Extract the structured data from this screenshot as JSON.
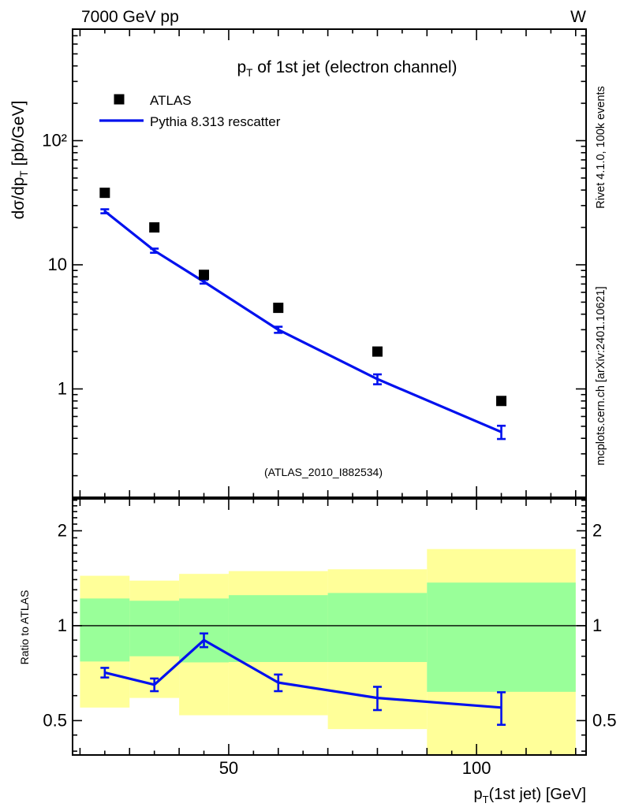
{
  "header": {
    "left": "7000 GeV pp",
    "right": "W"
  },
  "title": {
    "prefix": "p",
    "sub": "T",
    "rest": " of 1st jet (electron channel)"
  },
  "legend": [
    {
      "label": "ATLAS",
      "marker": "filled-square",
      "color": "#000000"
    },
    {
      "label": "Pythia 8.313 rescatter",
      "marker": "line",
      "color": "#0011ee"
    }
  ],
  "watermark": "(ATLAS_2010_I882534)",
  "side_notes": {
    "top": "Rivet 4.1.0,  100k events",
    "bottom": "mcplots.cern.ch [arXiv:2401.10621]"
  },
  "axes": {
    "x": {
      "label_prefix": "p",
      "label_sub": "T",
      "label_rest": "(1st jet) [GeV]",
      "scale": "linear",
      "range": [
        18.5,
        122.1
      ],
      "major_ticks": [
        50,
        100
      ],
      "tick_labels": [
        "50",
        "100"
      ],
      "medium_step": 10,
      "minor_step": 5
    },
    "y_main": {
      "label_prefix": "dσ/dp",
      "label_sub": "T",
      "label_rest": " [pb/GeV]",
      "scale": "log",
      "range": [
        0.134,
        791
      ],
      "major_ticks": [
        1,
        10,
        100
      ],
      "tick_labels": [
        "1",
        "10",
        "10²"
      ]
    },
    "y_ratio": {
      "label": "Ratio to ATLAS",
      "scale": "log",
      "range": [
        0.389,
        2.525
      ],
      "major_ticks": [
        0.5,
        1,
        2
      ],
      "tick_labels": [
        "0.5",
        "1",
        "2"
      ],
      "minor_ticks": [
        0.4,
        0.45,
        0.6,
        0.7,
        0.8,
        0.9,
        1.1,
        1.2,
        1.3,
        1.4,
        1.5,
        1.6,
        1.7,
        1.8,
        1.9,
        2.1,
        2.2,
        2.3,
        2.4,
        2.5
      ]
    }
  },
  "chart_data": [
    {
      "id": "main",
      "type": "line",
      "xscale": "linear",
      "yscale": "log",
      "xlim": [
        18.5,
        122.1
      ],
      "ylim": [
        0.134,
        791
      ],
      "series": [
        {
          "name": "ATLAS",
          "type": "scatter",
          "marker": "filled-square",
          "color": "#000000",
          "x": [
            25,
            35,
            45,
            60,
            80,
            105
          ],
          "y": [
            38,
            20,
            8.3,
            4.5,
            2.0,
            0.8
          ]
        },
        {
          "name": "Pythia 8.313 rescatter",
          "type": "line-errorbar",
          "color": "#0011ee",
          "x": [
            25,
            35,
            45,
            60,
            80,
            105
          ],
          "y": [
            27,
            13,
            7.3,
            3.0,
            1.2,
            0.45
          ],
          "yerr": [
            1.0,
            0.5,
            0.25,
            0.17,
            0.11,
            0.055
          ]
        }
      ]
    },
    {
      "id": "ratio",
      "type": "line",
      "xscale": "linear",
      "yscale": "log",
      "xlim": [
        18.5,
        122.1
      ],
      "ylim": [
        0.389,
        2.525
      ],
      "reference_line": 1,
      "series": [
        {
          "name": "Pythia/ATLAS",
          "type": "line-errorbar",
          "color": "#0011ee",
          "x": [
            25,
            35,
            45,
            60,
            80,
            105
          ],
          "y": [
            0.71,
            0.65,
            0.9,
            0.66,
            0.59,
            0.55
          ],
          "yerr": [
            0.025,
            0.03,
            0.045,
            0.04,
            0.05,
            0.065
          ]
        }
      ],
      "bands": {
        "bin_edges": [
          20,
          30,
          40,
          50,
          70,
          90,
          120
        ],
        "outer": {
          "color": "#ffff99",
          "ranges": [
            [
              0.55,
              1.44
            ],
            [
              0.59,
              1.39
            ],
            [
              0.52,
              1.46
            ],
            [
              0.52,
              1.49
            ],
            [
              0.47,
              1.51
            ],
            [
              0.39,
              1.75
            ]
          ]
        },
        "inner": {
          "color": "#99ff99",
          "ranges": [
            [
              0.77,
              1.22
            ],
            [
              0.8,
              1.2
            ],
            [
              0.765,
              1.22
            ],
            [
              0.767,
              1.25
            ],
            [
              0.767,
              1.27
            ],
            [
              0.617,
              1.37
            ]
          ]
        }
      }
    }
  ],
  "colors": {
    "mc_line": "#0011ee",
    "band_outer": "#ffff99",
    "band_inner": "#99ff99",
    "data_marker": "#000000",
    "note_gray": "#7f7f7f",
    "watermark_gray": "#9a9a9a"
  }
}
